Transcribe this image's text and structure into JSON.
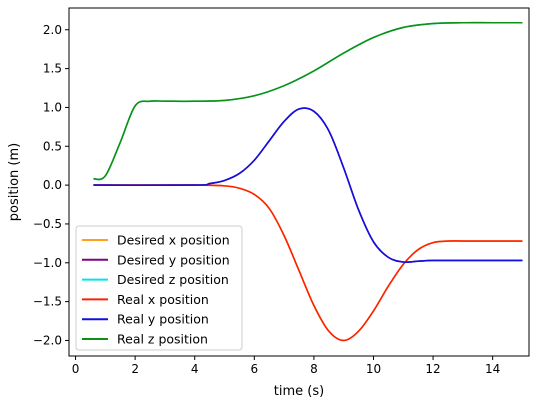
{
  "chart_data": {
    "type": "line",
    "title": "",
    "xlabel": "time (s)",
    "ylabel": "position (m)",
    "xlim": [
      -0.22,
      15.22
    ],
    "ylim": [
      -2.2,
      2.28
    ],
    "xticks": [
      0,
      2,
      4,
      6,
      8,
      10,
      12,
      14
    ],
    "yticks": [
      -2.0,
      -1.5,
      -1.0,
      -0.5,
      0.0,
      0.5,
      1.0,
      1.5,
      2.0
    ],
    "ytick_labels": [
      "−2.0",
      "−1.5",
      "−1.0",
      "−0.5",
      "0.0",
      "0.5",
      "1.0",
      "1.5",
      "2.0"
    ],
    "grid": false,
    "legend_position": "lower-left",
    "series": [
      {
        "name": "Desired x position",
        "color": "#ff9f1c",
        "x": [
          0.6,
          4.0,
          5.0,
          5.5,
          6.0,
          6.5,
          7.0,
          7.5,
          8.0,
          8.5,
          9.0,
          9.5,
          10.0,
          10.5,
          11.0,
          11.5,
          12.0,
          12.5,
          13.0,
          14.0,
          15.0
        ],
        "y": [
          0.0,
          0.0,
          -0.01,
          -0.04,
          -0.12,
          -0.3,
          -0.65,
          -1.1,
          -1.55,
          -1.88,
          -2.0,
          -1.88,
          -1.62,
          -1.3,
          -1.02,
          -0.83,
          -0.74,
          -0.72,
          -0.72,
          -0.72,
          -0.72
        ]
      },
      {
        "name": "Desired y position",
        "color": "#800080",
        "x": [
          0.6,
          4.0,
          4.5,
          5.0,
          5.5,
          6.0,
          6.5,
          7.0,
          7.5,
          8.0,
          8.5,
          9.0,
          9.5,
          10.0,
          10.5,
          11.0,
          11.5,
          12.0,
          13.0,
          14.0,
          15.0
        ],
        "y": [
          0.0,
          0.0,
          0.02,
          0.06,
          0.15,
          0.32,
          0.57,
          0.82,
          0.98,
          0.95,
          0.7,
          0.22,
          -0.32,
          -0.73,
          -0.93,
          -0.99,
          -0.98,
          -0.97,
          -0.97,
          -0.97,
          -0.97
        ]
      },
      {
        "name": "Desired z position",
        "color": "#00e5e5",
        "x": [
          0.6,
          1.0,
          1.5,
          2.0,
          2.5,
          3.0,
          4.0,
          5.0,
          6.0,
          7.0,
          8.0,
          9.0,
          10.0,
          11.0,
          12.0,
          13.0,
          14.0,
          15.0
        ],
        "y": [
          0.08,
          0.12,
          0.55,
          1.02,
          1.08,
          1.08,
          1.08,
          1.09,
          1.15,
          1.28,
          1.47,
          1.7,
          1.9,
          2.03,
          2.08,
          2.09,
          2.09,
          2.09
        ]
      },
      {
        "name": "Real x position",
        "color": "#ff2000",
        "x": [
          0.6,
          4.0,
          5.0,
          5.5,
          6.0,
          6.5,
          7.0,
          7.5,
          8.0,
          8.5,
          9.0,
          9.5,
          10.0,
          10.5,
          11.0,
          11.5,
          12.0,
          12.5,
          13.0,
          14.0,
          15.0
        ],
        "y": [
          0.0,
          0.0,
          -0.01,
          -0.04,
          -0.12,
          -0.3,
          -0.65,
          -1.1,
          -1.55,
          -1.88,
          -2.0,
          -1.88,
          -1.62,
          -1.3,
          -1.02,
          -0.83,
          -0.74,
          -0.72,
          -0.72,
          -0.72,
          -0.72
        ]
      },
      {
        "name": "Real y position",
        "color": "#1010e0",
        "x": [
          0.6,
          4.0,
          4.5,
          5.0,
          5.5,
          6.0,
          6.5,
          7.0,
          7.5,
          8.0,
          8.5,
          9.0,
          9.5,
          10.0,
          10.5,
          11.0,
          11.5,
          12.0,
          13.0,
          14.0,
          15.0
        ],
        "y": [
          0.0,
          0.0,
          0.02,
          0.06,
          0.15,
          0.32,
          0.57,
          0.82,
          0.98,
          0.95,
          0.7,
          0.22,
          -0.32,
          -0.73,
          -0.93,
          -0.99,
          -0.98,
          -0.97,
          -0.97,
          -0.97,
          -0.97
        ]
      },
      {
        "name": "Real z position",
        "color": "#109010",
        "x": [
          0.6,
          1.0,
          1.5,
          2.0,
          2.5,
          3.0,
          4.0,
          5.0,
          6.0,
          7.0,
          8.0,
          9.0,
          10.0,
          11.0,
          12.0,
          13.0,
          14.0,
          15.0
        ],
        "y": [
          0.08,
          0.12,
          0.55,
          1.02,
          1.08,
          1.08,
          1.08,
          1.09,
          1.15,
          1.28,
          1.47,
          1.7,
          1.9,
          2.03,
          2.08,
          2.09,
          2.09,
          2.09
        ]
      }
    ]
  }
}
